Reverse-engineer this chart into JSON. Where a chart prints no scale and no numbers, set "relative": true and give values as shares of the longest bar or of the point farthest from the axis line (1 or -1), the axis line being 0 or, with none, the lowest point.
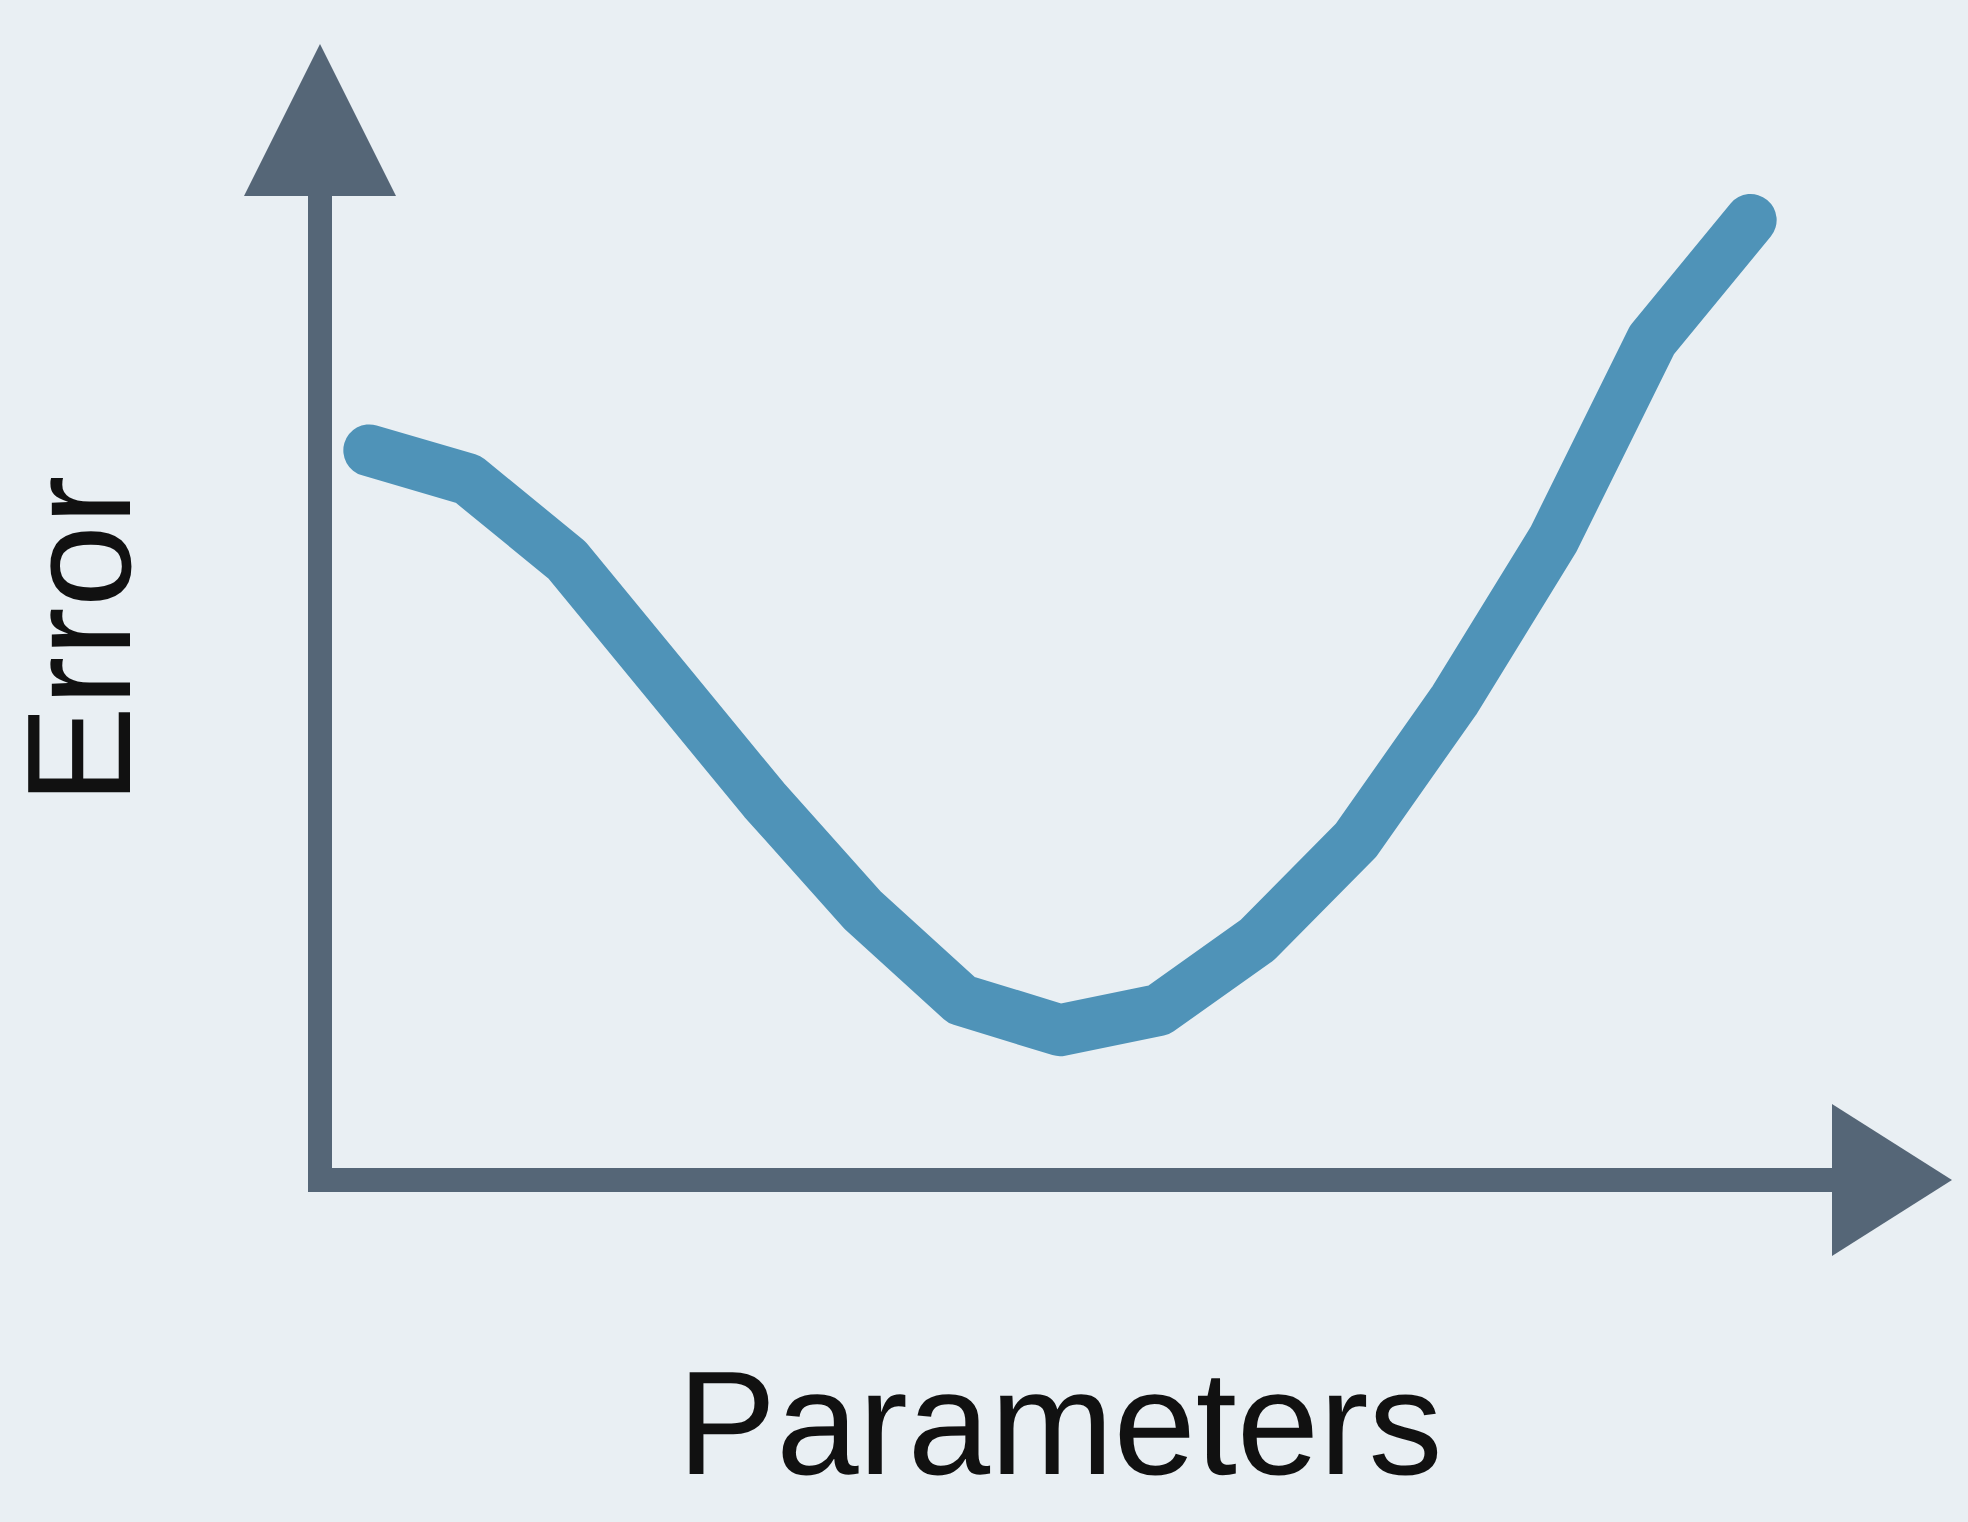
{
  "chart_data": {
    "type": "line",
    "xlabel": "Parameters",
    "ylabel": "Error",
    "relative": true,
    "grid": false,
    "legend": false,
    "marker": "none",
    "line_style": "solid",
    "categories": [
      null,
      null,
      null,
      null,
      null,
      null,
      null,
      null,
      null,
      null,
      null,
      null,
      null,
      null,
      null
    ],
    "series": [
      {
        "color": "#4f93b8",
        "values": [
          0.76,
          0.73,
          0.646,
          0.521,
          0.396,
          0.281,
          0.1875,
          0.156,
          0.177,
          0.25,
          0.354,
          0.5,
          0.667,
          0.875,
          1
        ]
      }
    ]
  }
}
